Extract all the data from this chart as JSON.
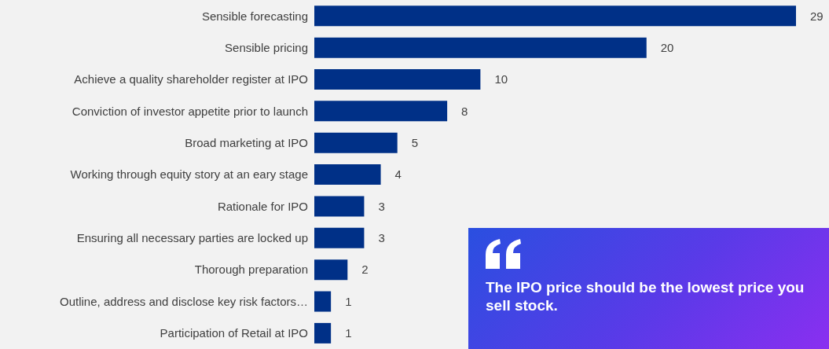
{
  "chart_data": {
    "type": "bar",
    "orientation": "horizontal",
    "categories": [
      "Sensible forecasting",
      "Sensible pricing",
      "Achieve a quality shareholder register at IPO",
      "Conviction of investor appetite prior to launch",
      "Broad marketing at IPO",
      "Working through equity story at an eary stage",
      "Rationale for IPO",
      "Ensuring all necessary parties are locked up",
      "Thorough preparation",
      "Outline, address and disclose key risk factors…",
      "Participation of Retail at IPO"
    ],
    "values": [
      29,
      20,
      10,
      8,
      5,
      4,
      3,
      3,
      2,
      1,
      1
    ],
    "color": "#003087",
    "data_labels": true,
    "annotations": [
      "The IPO price should be the lowest price you sell stock."
    ]
  }
}
